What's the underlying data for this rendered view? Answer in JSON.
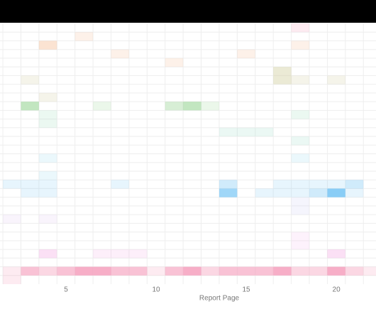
{
  "chart_data": {
    "type": "heatmap",
    "x_label": "Report Page",
    "x": [
      1,
      2,
      3,
      4,
      5,
      6,
      7,
      8,
      9,
      10,
      11,
      12,
      13,
      14,
      15,
      16,
      17,
      18,
      19,
      20,
      21,
      22
    ],
    "xlim": [
      1.34,
      22.2
    ],
    "xticks": [
      5,
      10,
      15,
      20
    ],
    "grid": true,
    "categories": [
      null,
      null,
      null,
      null,
      null,
      null,
      null,
      null,
      null,
      null,
      null,
      null,
      null,
      null,
      null,
      null,
      null,
      null,
      null,
      null,
      null,
      null,
      null,
      null,
      null,
      null,
      null,
      null,
      null,
      null
    ],
    "rows": [
      {
        "color": "#f48fb1",
        "values": [
          0,
          0,
          0,
          0,
          0,
          0,
          0,
          0,
          0,
          0,
          0,
          0,
          0,
          0,
          0,
          0,
          0,
          1,
          0,
          0,
          0,
          0
        ]
      },
      {
        "color": "#f4b183",
        "values": [
          0,
          0,
          0,
          0,
          0,
          1,
          0,
          0,
          0,
          0,
          0,
          0,
          0,
          0,
          0,
          0,
          0,
          0,
          0,
          0,
          0,
          0
        ]
      },
      {
        "color": "#f4b183",
        "values": [
          0,
          0,
          0,
          2,
          0,
          0,
          0,
          0,
          0,
          0,
          0,
          0,
          0,
          0,
          0,
          0,
          0,
          1,
          0,
          0,
          0,
          0
        ]
      },
      {
        "color": "#f4b183",
        "values": [
          0,
          0,
          0,
          0,
          0,
          0,
          0,
          1,
          0,
          0,
          0,
          0,
          0,
          0,
          1,
          0,
          0,
          0,
          0,
          0,
          0,
          0
        ]
      },
      {
        "color": "#f4b183",
        "values": [
          0,
          0,
          0,
          0,
          0,
          0,
          0,
          0,
          0,
          0,
          1,
          0,
          0,
          0,
          0,
          0,
          0,
          0,
          0,
          0,
          0,
          0
        ]
      },
      {
        "color": "#c8c48a",
        "values": [
          0,
          0,
          0,
          0,
          0,
          0,
          0,
          0,
          0,
          0,
          0,
          0,
          0,
          0,
          0,
          0,
          2,
          0,
          0,
          0,
          0,
          0
        ]
      },
      {
        "color": "#c8c48a",
        "values": [
          0,
          0,
          1,
          0,
          0,
          0,
          0,
          0,
          0,
          0,
          0,
          0,
          0,
          0,
          0,
          0,
          2,
          1,
          0,
          1,
          0,
          0
        ]
      },
      {
        "color": "#c8c48a",
        "values": [
          0,
          0,
          0,
          0,
          0,
          0,
          0,
          0,
          0,
          0,
          0,
          0,
          0,
          0,
          0,
          0,
          0,
          0,
          0,
          0,
          0,
          0
        ]
      },
      {
        "color": "#c8c48a",
        "values": [
          0,
          0,
          0,
          1,
          0,
          0,
          0,
          0,
          0,
          0,
          0,
          0,
          0,
          0,
          0,
          0,
          0,
          0,
          0,
          0,
          0,
          0
        ]
      },
      {
        "color": "#8fd18a",
        "values": [
          0,
          0,
          3,
          0,
          0,
          0,
          1,
          0,
          0,
          0,
          2,
          3,
          1,
          0,
          0,
          0,
          0,
          0,
          0,
          0,
          0,
          0
        ]
      },
      {
        "color": "#90d8b0",
        "values": [
          0,
          0,
          0,
          1,
          0,
          0,
          0,
          0,
          0,
          0,
          0,
          0,
          0,
          0,
          0,
          0,
          0,
          1,
          0,
          0,
          0,
          0
        ]
      },
      {
        "color": "#90d8b0",
        "values": [
          0,
          0,
          0,
          1,
          0,
          0,
          0,
          0,
          0,
          0,
          0,
          0,
          0,
          0,
          0,
          0,
          0,
          0,
          0,
          0,
          0,
          0
        ]
      },
      {
        "color": "#90d8c0",
        "values": [
          0,
          0,
          0,
          0,
          0,
          0,
          0,
          0,
          0,
          0,
          0,
          0,
          0,
          1,
          1,
          1,
          0,
          0,
          0,
          0,
          0,
          0
        ]
      },
      {
        "color": "#90d8c0",
        "values": [
          0,
          0,
          0,
          0,
          0,
          0,
          0,
          0,
          0,
          0,
          0,
          0,
          0,
          0,
          0,
          0,
          0,
          1,
          0,
          0,
          0,
          0
        ]
      },
      {
        "color": "#8fd8ee",
        "values": [
          0,
          0,
          0,
          0,
          0,
          0,
          0,
          0,
          0,
          0,
          0,
          0,
          0,
          0,
          0,
          0,
          0,
          0,
          0,
          0,
          0,
          0
        ]
      },
      {
        "color": "#8fd8ee",
        "values": [
          0,
          0,
          0,
          1,
          0,
          0,
          0,
          0,
          0,
          0,
          0,
          0,
          0,
          0,
          0,
          0,
          0,
          1,
          0,
          0,
          0,
          0
        ]
      },
      {
        "color": "#8fd8ee",
        "values": [
          0,
          0,
          0,
          0,
          0,
          0,
          0,
          0,
          0,
          0,
          0,
          0,
          0,
          0,
          0,
          0,
          0,
          0,
          0,
          0,
          0,
          0
        ]
      },
      {
        "color": "#8fd8ee",
        "values": [
          0,
          0,
          0,
          1,
          0,
          0,
          0,
          0,
          0,
          0,
          0,
          0,
          0,
          0,
          0,
          0,
          0,
          0,
          0,
          0,
          0,
          0
        ]
      },
      {
        "color": "#7cc8f5",
        "values": [
          0,
          1,
          1,
          1,
          0,
          0,
          0,
          1,
          0,
          0,
          0,
          0,
          0,
          2,
          0,
          0,
          1,
          1,
          1,
          1,
          2,
          0
        ]
      },
      {
        "color": "#7cc8f5",
        "values": [
          0,
          0,
          1,
          1,
          0,
          0,
          0,
          0,
          0,
          0,
          0,
          0,
          0,
          4,
          0,
          1,
          1,
          1,
          2,
          5,
          1,
          0
        ]
      },
      {
        "color": "#c8c8f5",
        "values": [
          0,
          0,
          0,
          0,
          0,
          0,
          0,
          0,
          0,
          0,
          0,
          0,
          0,
          0,
          0,
          0,
          0,
          1,
          0,
          0,
          0,
          0
        ]
      },
      {
        "color": "#c8c8f5",
        "values": [
          0,
          0,
          0,
          0,
          0,
          0,
          0,
          0,
          0,
          0,
          0,
          0,
          0,
          0,
          0,
          0,
          0,
          1,
          0,
          0,
          0,
          0
        ]
      },
      {
        "color": "#dcc0f0",
        "values": [
          0,
          1,
          0,
          1,
          0,
          0,
          0,
          0,
          0,
          0,
          0,
          0,
          0,
          0,
          0,
          0,
          0,
          0,
          0,
          0,
          0,
          0
        ]
      },
      {
        "color": "#dcc0f0",
        "values": [
          0,
          0,
          0,
          0,
          0,
          0,
          0,
          0,
          0,
          0,
          0,
          0,
          0,
          0,
          0,
          0,
          0,
          0,
          0,
          0,
          0,
          0
        ]
      },
      {
        "color": "#f5b8ec",
        "values": [
          0,
          0,
          0,
          0,
          0,
          0,
          0,
          0,
          0,
          0,
          0,
          0,
          0,
          0,
          0,
          0,
          0,
          1,
          0,
          0,
          0,
          0
        ]
      },
      {
        "color": "#f5b8ec",
        "values": [
          0,
          0,
          0,
          0,
          0,
          0,
          0,
          0,
          0,
          0,
          0,
          0,
          0,
          0,
          0,
          0,
          0,
          1,
          0,
          0,
          0,
          0
        ]
      },
      {
        "color": "#f5a8e4",
        "values": [
          0,
          0,
          0,
          2,
          0,
          0,
          1,
          1,
          1,
          0,
          0,
          0,
          0,
          0,
          0,
          0,
          0,
          0,
          0,
          2,
          0,
          0
        ]
      },
      {
        "color": "#f5a8e4",
        "values": [
          0,
          0,
          0,
          0,
          0,
          0,
          0,
          0,
          0,
          0,
          0,
          0,
          0,
          0,
          0,
          0,
          0,
          0,
          0,
          0,
          0,
          0
        ]
      },
      {
        "color": "#f48fb1",
        "values": [
          0,
          1,
          3,
          2,
          3,
          4,
          4,
          3,
          3,
          1,
          3,
          4,
          2,
          3,
          3,
          3,
          4,
          2,
          2,
          4,
          2,
          1
        ]
      },
      {
        "color": "#f48fb1",
        "values": [
          0,
          1,
          0,
          0,
          0,
          0,
          0,
          0,
          0,
          0,
          0,
          0,
          0,
          0,
          0,
          0,
          0,
          0,
          0,
          0,
          0,
          0
        ]
      }
    ]
  }
}
